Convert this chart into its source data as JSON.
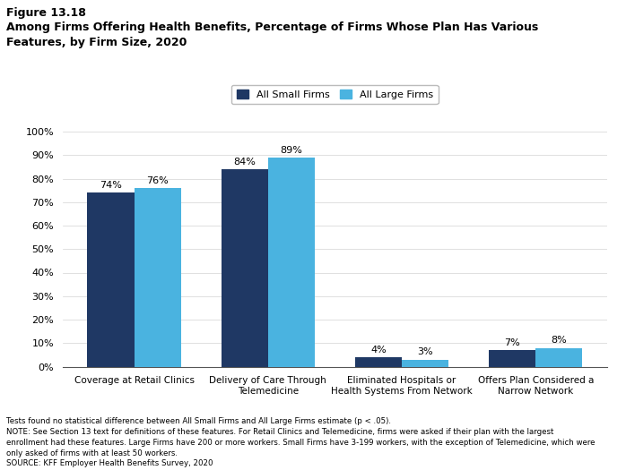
{
  "figure_label": "Figure 13.18",
  "title_line": "Among Firms Offering Health Benefits, Percentage of Firms Whose Plan Has Various\nFeatures, by Firm Size, 2020",
  "categories": [
    "Coverage at Retail Clinics",
    "Delivery of Care Through\nTelemedicine",
    "Eliminated Hospitals or\nHealth Systems From Network",
    "Offers Plan Considered a\nNarrow Network"
  ],
  "small_firms": [
    74,
    84,
    4,
    7
  ],
  "large_firms": [
    76,
    89,
    3,
    8
  ],
  "small_color": "#1f3864",
  "large_color": "#4ab3e0",
  "legend_labels": [
    "All Small Firms",
    "All Large Firms"
  ],
  "ylim": [
    0,
    100
  ],
  "yticks": [
    0,
    10,
    20,
    30,
    40,
    50,
    60,
    70,
    80,
    90,
    100
  ],
  "bar_width": 0.35,
  "footnote_lines": [
    "Tests found no statistical difference between All Small Firms and All Large Firms estimate (p < .05).",
    "NOTE: See Section 13 text for definitions of these features. For Retail Clinics and Telemedicine, firms were asked if their plan with the largest",
    "enrollment had these features. Large Firms have 200 or more workers. Small Firms have 3-199 workers, with the exception of Telemedicine, which were",
    "only asked of firms with at least 50 workers.",
    "SOURCE: KFF Employer Health Benefits Survey, 2020"
  ]
}
